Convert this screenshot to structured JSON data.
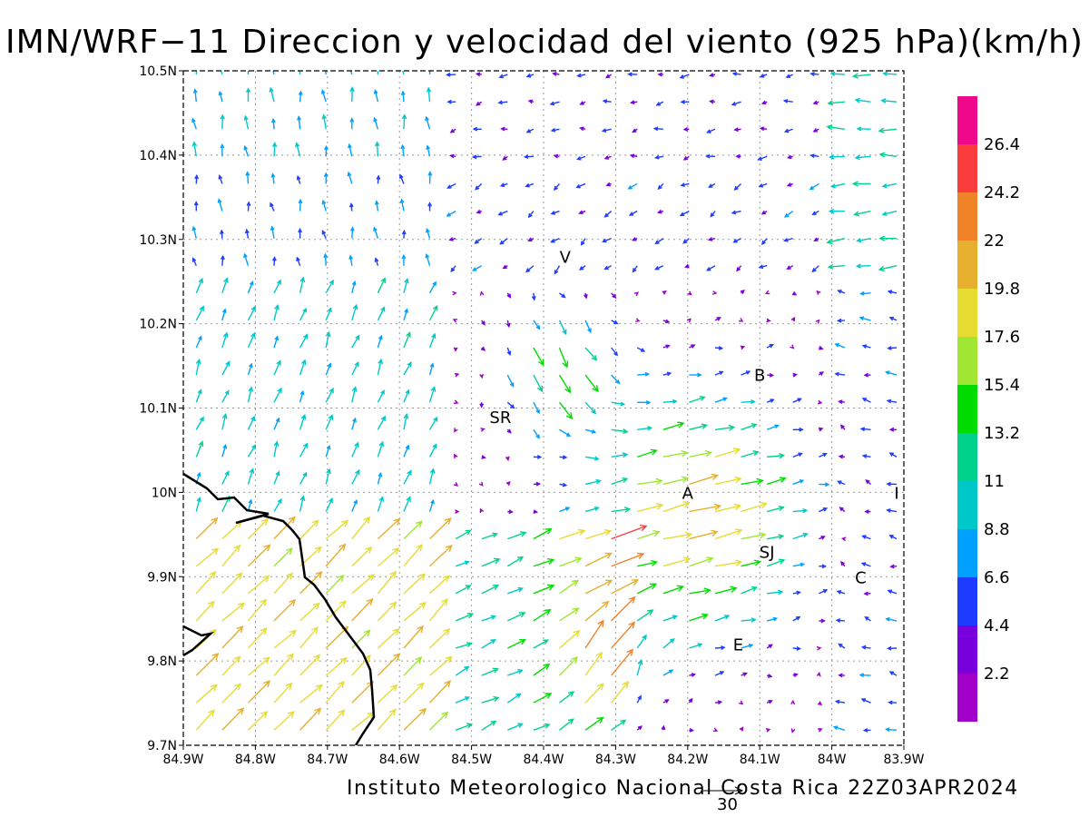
{
  "title": "IMN/WRF−11 Direccion y velocidad del viento (925 hPa)(km/h)",
  "footer": "Instituto Meteorologico Nacional Costa Rica 22Z03APR2024",
  "reference_vector_label": "30",
  "map": {
    "lon_range": [
      -84.9,
      -83.9
    ],
    "lat_range": [
      9.7,
      10.5
    ],
    "x_tick_labels": [
      "84.9W",
      "84.8W",
      "84.7W",
      "84.6W",
      "84.5W",
      "84.4W",
      "84.3W",
      "84.2W",
      "84.1W",
      "84W",
      "83.9W"
    ],
    "y_tick_labels": [
      "9.7N",
      "9.8N",
      "9.9N",
      "10N",
      "10.1N",
      "10.2N",
      "10.3N",
      "10.4N",
      "10.5N"
    ],
    "grid": "dotted",
    "towns": [
      {
        "label": "V",
        "lon": -84.37,
        "lat": 10.28
      },
      {
        "label": "SR",
        "lon": -84.46,
        "lat": 10.09
      },
      {
        "label": "B",
        "lon": -84.1,
        "lat": 10.14
      },
      {
        "label": "A",
        "lon": -84.2,
        "lat": 10.0
      },
      {
        "label": "I",
        "lon": -83.91,
        "lat": 10.0
      },
      {
        "label": "SJ",
        "lon": -84.09,
        "lat": 9.93
      },
      {
        "label": "C",
        "lon": -83.96,
        "lat": 9.9
      },
      {
        "label": "E",
        "lon": -84.13,
        "lat": 9.82
      }
    ]
  },
  "colorbar": {
    "labels": [
      "26.4",
      "24.2",
      "22",
      "19.8",
      "17.6",
      "15.4",
      "13.2",
      "11",
      "8.8",
      "6.6",
      "4.4",
      "2.2"
    ],
    "colors": [
      "#f0088c",
      "#fa3c3c",
      "#f08228",
      "#e6af2d",
      "#e6dc32",
      "#a0e632",
      "#00dc00",
      "#00d28c",
      "#00c8c8",
      "#00a0ff",
      "#1e3cff",
      "#7800dc",
      "#a000c8"
    ]
  },
  "wind_field": {
    "grid_lon_start": -84.9,
    "grid_lat_start": 9.7,
    "grid_spacing_deg": 0.036
  }
}
